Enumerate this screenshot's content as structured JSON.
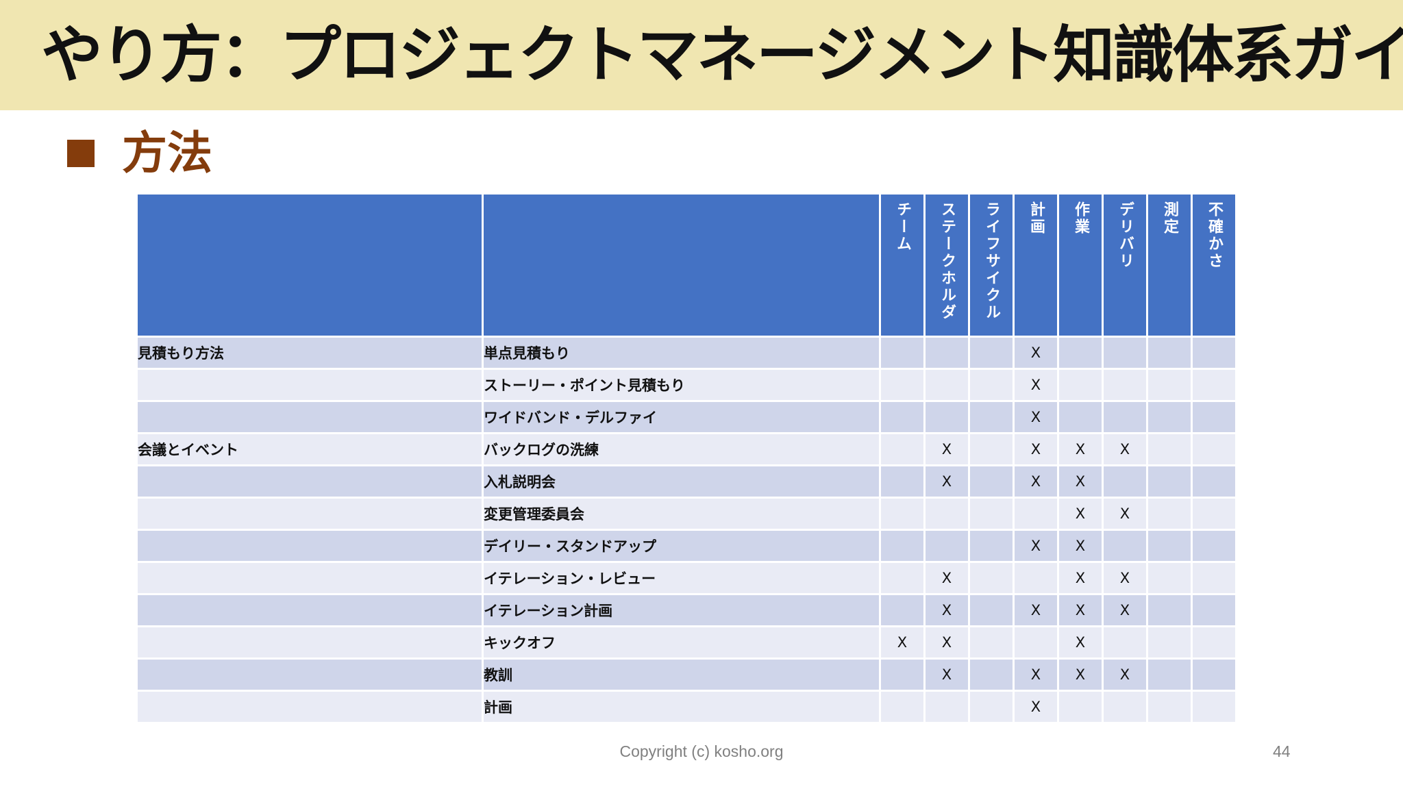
{
  "title": "やり方：プロジェクトマネージメント知識体系ガイド",
  "section": "方法",
  "table": {
    "columns": [
      "チーム",
      "ステークホルダ",
      "ライフサイクル",
      "計画",
      "作業",
      "デリバリ",
      "測定",
      "不確かさ"
    ],
    "rows": [
      {
        "category": "見積もり方法",
        "method": "単点見積もり",
        "marks": [
          "",
          "",
          "",
          "X",
          "",
          "",
          "",
          ""
        ]
      },
      {
        "category": "",
        "method": "ストーリー・ポイント見積もり",
        "marks": [
          "",
          "",
          "",
          "X",
          "",
          "",
          "",
          ""
        ]
      },
      {
        "category": "",
        "method": "ワイドバンド・デルファイ",
        "marks": [
          "",
          "",
          "",
          "X",
          "",
          "",
          "",
          ""
        ]
      },
      {
        "category": "会議とイベント",
        "method": "バックログの洗練",
        "marks": [
          "",
          "X",
          "",
          "X",
          "X",
          "X",
          "",
          ""
        ]
      },
      {
        "category": "",
        "method": "入札説明会",
        "marks": [
          "",
          "X",
          "",
          "X",
          "X",
          "",
          "",
          ""
        ]
      },
      {
        "category": "",
        "method": "変更管理委員会",
        "marks": [
          "",
          "",
          "",
          "",
          "X",
          "X",
          "",
          ""
        ]
      },
      {
        "category": "",
        "method": "デイリー・スタンドアップ",
        "marks": [
          "",
          "",
          "",
          "X",
          "X",
          "",
          "",
          ""
        ]
      },
      {
        "category": "",
        "method": "イテレーション・レビュー",
        "marks": [
          "",
          "X",
          "",
          "",
          "X",
          "X",
          "",
          ""
        ]
      },
      {
        "category": "",
        "method": "イテレーション計画",
        "marks": [
          "",
          "X",
          "",
          "X",
          "X",
          "X",
          "",
          ""
        ]
      },
      {
        "category": "",
        "method": "キックオフ",
        "marks": [
          "X",
          "X",
          "",
          "",
          "X",
          "",
          "",
          ""
        ]
      },
      {
        "category": "",
        "method": "教訓",
        "marks": [
          "",
          "X",
          "",
          "X",
          "X",
          "X",
          "",
          ""
        ]
      },
      {
        "category": "",
        "method": "計画",
        "marks": [
          "",
          "",
          "",
          "X",
          "",
          "",
          "",
          ""
        ]
      }
    ]
  },
  "footer": {
    "copyright": "Copyright (c) kosho.org",
    "page": "44"
  },
  "colors": {
    "title_band": "#f0e6b1",
    "accent": "#843c0c",
    "header": "#4472c4",
    "row_odd": "#cfd5ea",
    "row_even": "#e9ebf5"
  }
}
